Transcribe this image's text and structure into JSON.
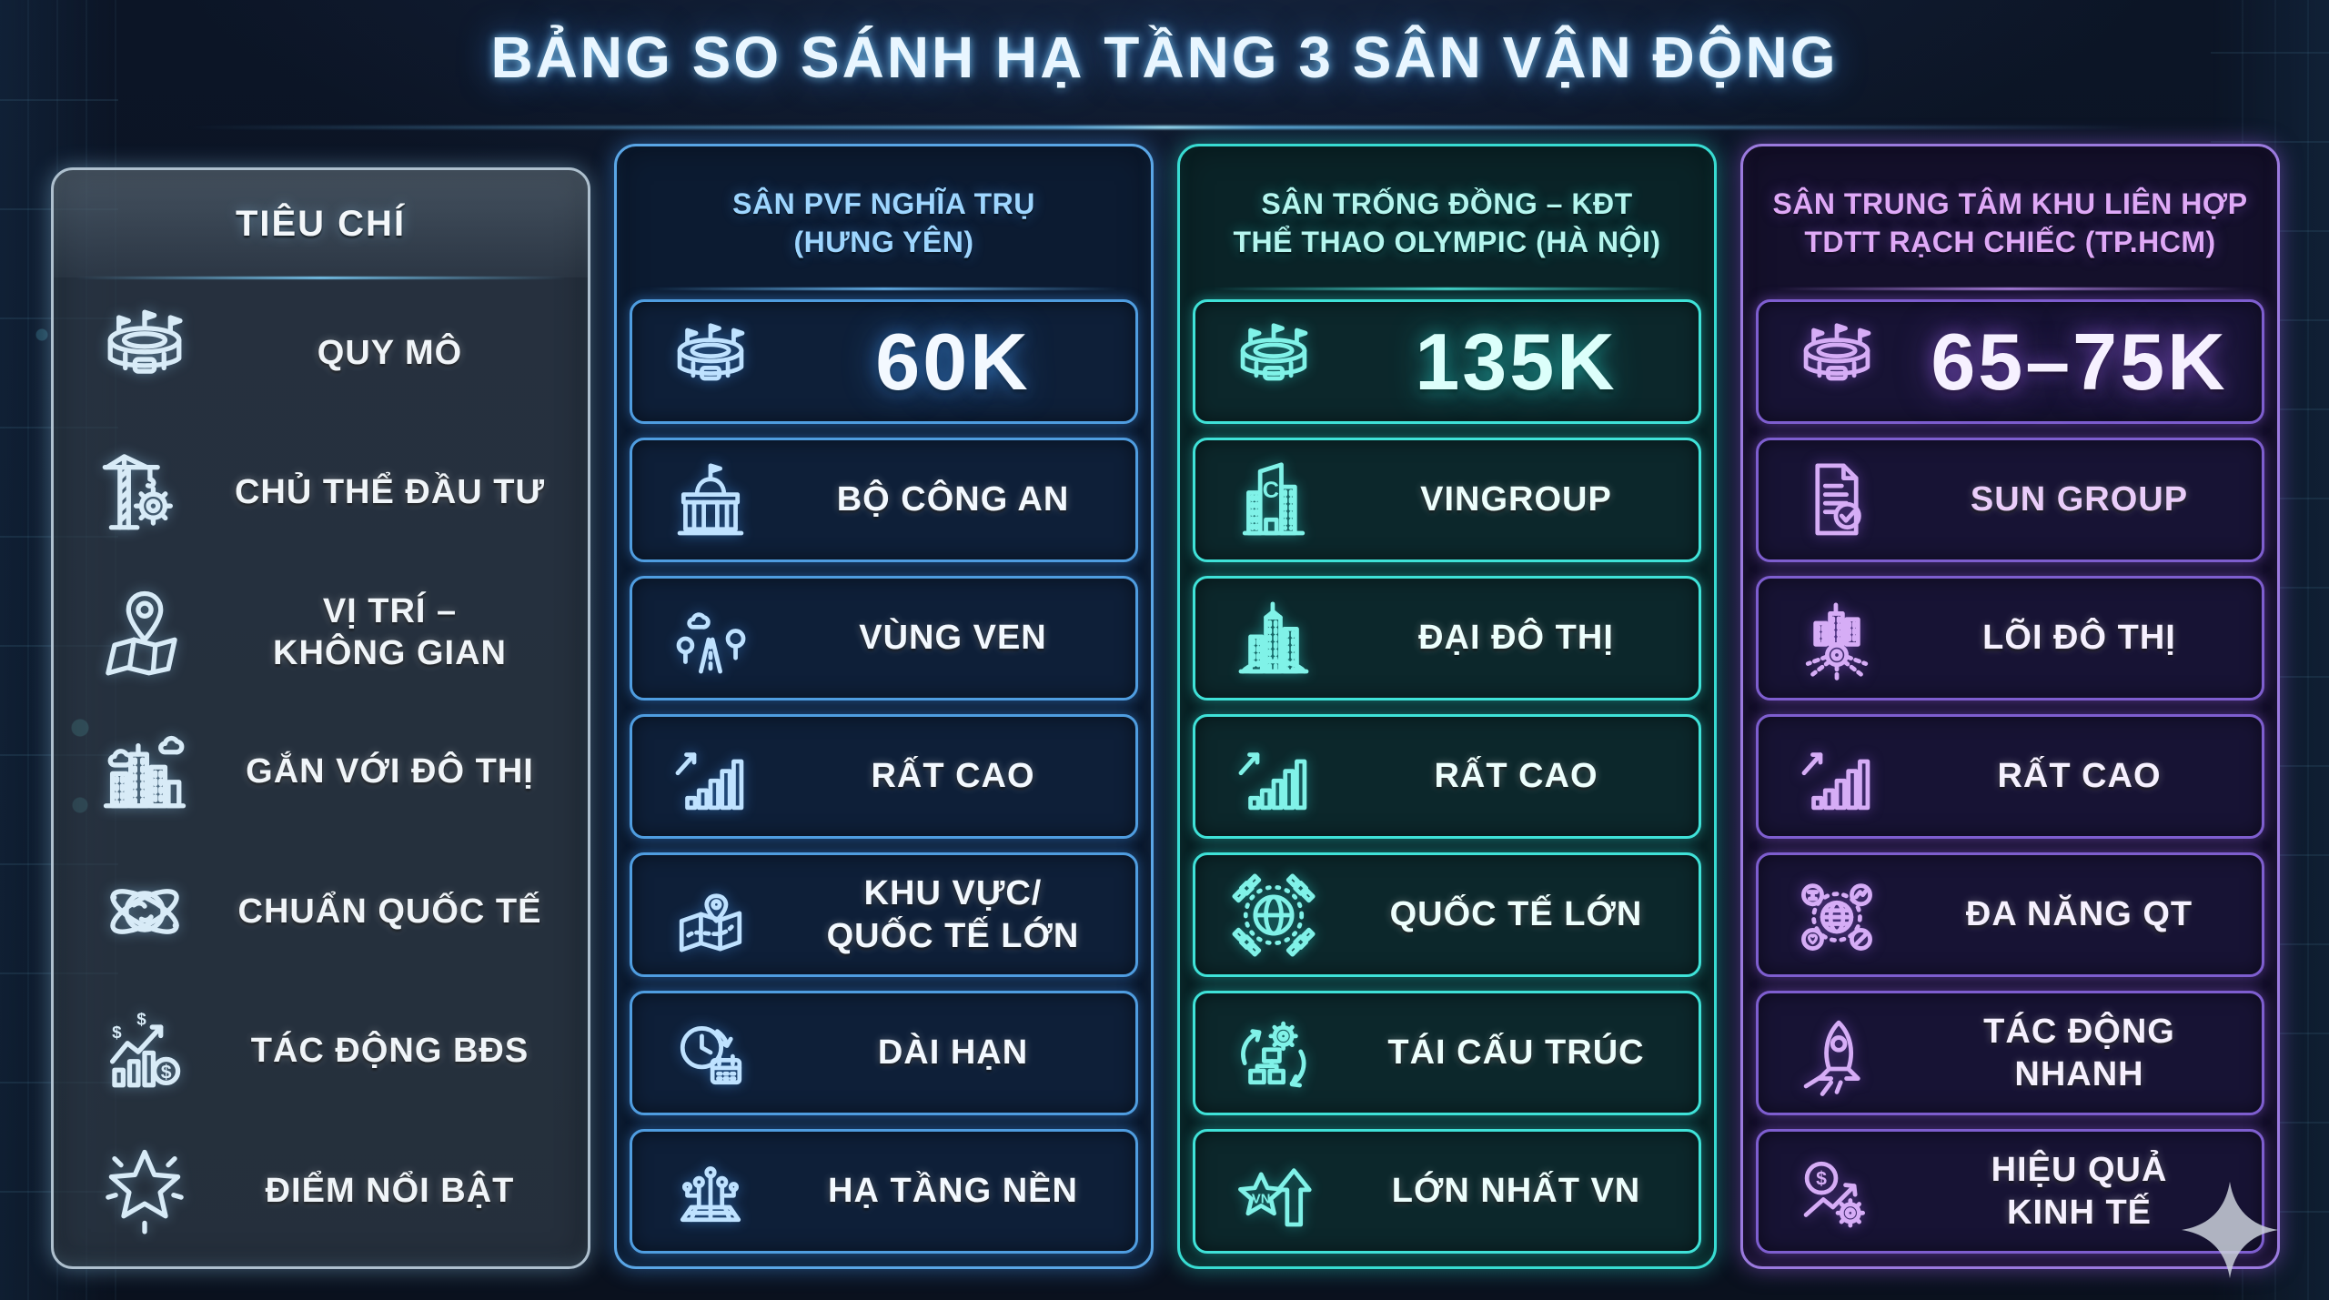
{
  "title": "BẢNG SO SÁNH HẠ TẦNG 3 SÂN VẬN ĐỘNG",
  "chart_data": {
    "type": "table",
    "title": "BẢNG SO SÁNH HẠ TẦNG 3 SÂN VẬN ĐỘNG",
    "criteria": [
      "QUY MÔ",
      "CHỦ THỂ ĐẦU TƯ",
      "VỊ TRÍ – KHÔNG GIAN",
      "GẮN VỚI ĐÔ THỊ",
      "CHUẨN QUỐC TẾ",
      "TÁC ĐỘNG BĐS",
      "ĐIỂM NỔI BẬT"
    ],
    "series": [
      {
        "name": "SÂN PVF NGHĨA TRỤ (HƯNG YÊN)",
        "values": [
          "60K",
          "BỘ CÔNG AN",
          "VÙNG VEN",
          "RẤT CAO",
          "KHU VỰC/ QUỐC TẾ LỚN",
          "DÀI HẠN",
          "HẠ TẦNG NỀN"
        ]
      },
      {
        "name": "SÂN TRỐNG ĐỒNG – KĐT THỂ THAO OLYMPIC (HÀ NỘI)",
        "values": [
          "135K",
          "VINGROUP",
          "ĐẠI ĐÔ THỊ",
          "RẤT CAO",
          "QUỐC TẾ LỚN",
          "TÁI CẤU TRÚC",
          "LỚN NHẤT VN"
        ]
      },
      {
        "name": "SÂN TRUNG TÂM KHU LIÊN HỢP TDTT RẠCH CHIẾC (TP.HCM)",
        "values": [
          "65–75K",
          "SUN GROUP",
          "LÕI ĐÔ THỊ",
          "RẤT CAO",
          "ĐA NĂNG QT",
          "TÁC ĐỘNG NHANH",
          "HIỆU QUẢ KINH TẾ"
        ]
      }
    ],
    "capacities_thousands": {
      "PVF Nghĩa Trụ": 60,
      "Trống Đồng Olympic": 135,
      "Rạch Chiếc (min)": 65,
      "Rạch Chiếc (max)": 75
    }
  },
  "columns": [
    {
      "key": "tieu-chi",
      "header": "TIÊU CHÍ",
      "theme": {
        "border": "#aec0ce",
        "panelbg": "rgba(52,64,76,0.66)",
        "cellbg": "transparent",
        "cellborder": "transparent",
        "headertext": "#f3f7fa",
        "text": "#f0f5f9",
        "icon": "#d8ebf7",
        "accent": "#7fd4ff",
        "glow": "rgba(140,195,230,0.45)"
      },
      "rows": [
        {
          "icon": "stadium",
          "label": "QUY MÔ"
        },
        {
          "icon": "crane-gear",
          "label": "CHỦ THỂ ĐẦU TƯ"
        },
        {
          "icon": "map-pin",
          "label": "VỊ TRÍ –\nKHÔNG GIAN"
        },
        {
          "icon": "city-skyline",
          "label": "GẮN VỚI ĐÔ THỊ"
        },
        {
          "icon": "globe-orbit",
          "label": "CHUẨN QUỐC TẾ"
        },
        {
          "icon": "chart-money",
          "label": "TÁC ĐỘNG BĐS"
        },
        {
          "icon": "star",
          "label": "ĐIỂM NỔI BẬT"
        }
      ]
    },
    {
      "key": "pvf",
      "header": "SÂN PVF NGHĨA TRỤ\n(HƯNG YÊN)",
      "theme": {
        "border": "#5aa6e6",
        "panelbg": "#0c1b31",
        "cellbg": "#0e1f38",
        "cellborder": "#4f9de0",
        "headertext": "#9ed6ff",
        "text": "#f3f9ff",
        "icon": "#bfe2ff",
        "accent": "#6fc2ff",
        "glow": "rgba(70,160,255,0.45)"
      },
      "rows": [
        {
          "icon": "stadium",
          "label": "60K",
          "emphasis": true
        },
        {
          "icon": "gov-building",
          "label": "BỘ CÔNG AN"
        },
        {
          "icon": "road-trees",
          "label": "VÙNG VEN"
        },
        {
          "icon": "bar-growth",
          "label": "RẤT CAO"
        },
        {
          "icon": "map-route",
          "label": "KHU VỰC/\nQUỐC TẾ LỚN"
        },
        {
          "icon": "clock-calendar",
          "label": "DÀI HẠN"
        },
        {
          "icon": "circuit-base",
          "label": "HẠ TẦNG NỀN"
        }
      ]
    },
    {
      "key": "trong-dong",
      "header": "SÂN TRỐNG ĐỒNG – KĐT\nTHỂ THAO OLYMPIC (HÀ NỘI)",
      "theme": {
        "border": "#38dcd2",
        "panelbg": "#0a2327",
        "cellbg": "#0c272b",
        "cellborder": "#3fe2d8",
        "headertext": "#b5f6ef",
        "text": "#edfffd",
        "icon": "#80f2e8",
        "accent": "#4ef0e4",
        "glow": "rgba(45,220,210,0.45)"
      },
      "rows": [
        {
          "icon": "stadium",
          "label": "135K",
          "emphasis": true,
          "color": "#dcfffb"
        },
        {
          "icon": "building-c",
          "label": "VINGROUP"
        },
        {
          "icon": "city-towers",
          "label": "ĐẠI ĐÔ THỊ"
        },
        {
          "icon": "bar-growth",
          "label": "RẤT CAO"
        },
        {
          "icon": "globe-sat",
          "label": "QUỐC TẾ LỚN"
        },
        {
          "icon": "restructure",
          "label": "TÁI CẤU TRÚC"
        },
        {
          "icon": "star-vn-up",
          "label": "LỚN NHẤT VN"
        }
      ]
    },
    {
      "key": "rach-chiec",
      "header": "SÂN TRUNG TÂM KHU LIÊN HỢP\nTDTT RẠCH CHIẾC (TP.HCM)",
      "theme": {
        "border": "#9b7ade",
        "panelbg": "#14102b",
        "cellbg": "#171334",
        "cellborder": "#7e5ecf",
        "headertext": "#dfa9f7",
        "text": "#f6f1ff",
        "icon": "#d6adf6",
        "accent": "#bb8cf2",
        "glow": "rgba(150,95,230,0.5)"
      },
      "rows": [
        {
          "icon": "stadium",
          "label": "65–75K",
          "emphasis": true
        },
        {
          "icon": "doc-check",
          "label": "SUN GROUP",
          "color": "#eacdfa"
        },
        {
          "icon": "city-core",
          "label": "LÕI ĐÔ THỊ"
        },
        {
          "icon": "bar-growth",
          "label": "RẤT CAO"
        },
        {
          "icon": "globe-multi",
          "label": "ĐA NĂNG QT"
        },
        {
          "icon": "rocket",
          "label": "TÁC ĐỘNG\nNHANH"
        },
        {
          "icon": "coin-gear",
          "label": "HIỆU QUẢ\nKINH TẾ"
        }
      ]
    }
  ],
  "watermark_icon": "sparkle"
}
